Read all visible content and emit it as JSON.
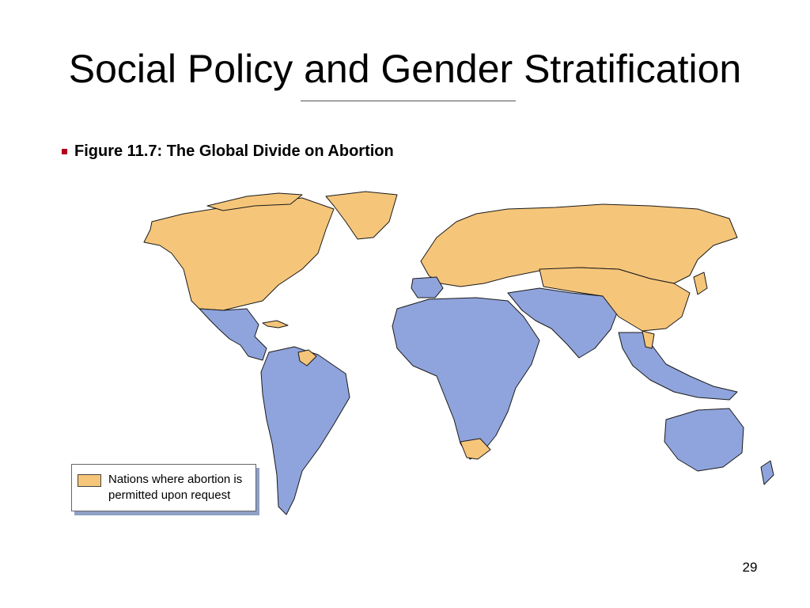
{
  "slide": {
    "title": "Social Policy and Gender Stratification",
    "bullet": "Figure 11.7: The Global Divide on Abortion",
    "page_number": "29"
  },
  "map": {
    "colors": {
      "permitted": "#f5c57a",
      "restricted": "#8fa4dc",
      "border": "#1a1a1a",
      "water": "#ffffff"
    },
    "regions": [
      {
        "name": "North America (Canada, USA)",
        "status": "permitted"
      },
      {
        "name": "Greenland",
        "status": "permitted"
      },
      {
        "name": "Mexico and Central America",
        "status": "restricted"
      },
      {
        "name": "Cuba",
        "status": "permitted"
      },
      {
        "name": "South America",
        "status": "restricted"
      },
      {
        "name": "Guyana / French Guiana",
        "status": "permitted"
      },
      {
        "name": "Europe and Russia",
        "status": "permitted"
      },
      {
        "name": "Ireland, Portugal, Spain, Poland",
        "status": "restricted"
      },
      {
        "name": "Africa",
        "status": "restricted"
      },
      {
        "name": "Tunisia",
        "status": "permitted"
      },
      {
        "name": "South Africa",
        "status": "permitted"
      },
      {
        "name": "Middle East and South Asia",
        "status": "restricted"
      },
      {
        "name": "Central Asia, China, Mongolia",
        "status": "permitted"
      },
      {
        "name": "Korea, Japan",
        "status": "permitted"
      },
      {
        "name": "Vietnam, Cambodia",
        "status": "permitted"
      },
      {
        "name": "Southeast Asia and Indonesia",
        "status": "restricted"
      },
      {
        "name": "Australia and New Zealand",
        "status": "restricted"
      }
    ]
  },
  "legend": {
    "label": "Nations where abortion is permitted upon request",
    "swatch_color": "#f5c57a"
  }
}
